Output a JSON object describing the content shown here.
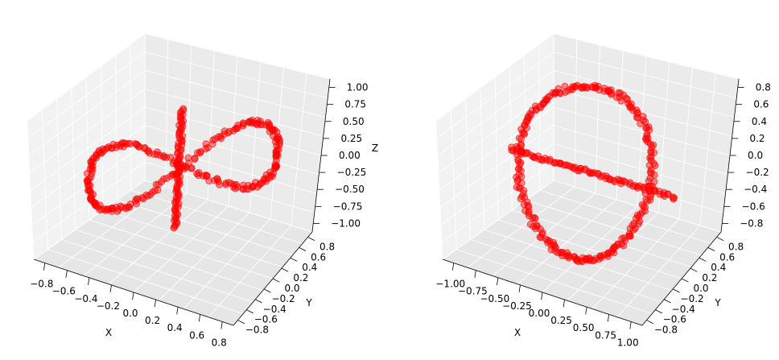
{
  "chart_data": [
    {
      "type": "scatter3d",
      "title": "",
      "xlabel": "X",
      "ylabel": "Y",
      "zlabel": "Z",
      "xlim": [
        -0.9,
        0.9
      ],
      "ylim": [
        -0.9,
        0.9
      ],
      "zlim": [
        -1.1,
        1.1
      ],
      "xticks": [
        "−0.8",
        "−0.6",
        "−0.4",
        "−0.2",
        "0.0",
        "0.2",
        "0.4",
        "0.6",
        "0.8"
      ],
      "yticks": [
        "−0.8",
        "−0.6",
        "−0.4",
        "−0.2",
        "0.0",
        "0.2",
        "0.4",
        "0.6",
        "0.8"
      ],
      "zticks": [
        "−1.00",
        "−0.75",
        "−0.50",
        "−0.25",
        "0.00",
        "0.25",
        "0.50",
        "0.75",
        "1.00"
      ],
      "xtick_values": [
        -0.8,
        -0.6,
        -0.4,
        -0.2,
        0.0,
        0.2,
        0.4,
        0.6,
        0.8
      ],
      "ytick_values": [
        -0.8,
        -0.6,
        -0.4,
        -0.2,
        0.0,
        0.2,
        0.4,
        0.6,
        0.8
      ],
      "ztick_values": [
        -1.0,
        -0.75,
        -0.5,
        -0.25,
        0.0,
        0.25,
        0.5,
        0.75,
        1.0
      ],
      "color": "#ff0000",
      "grid": true,
      "series": [
        {
          "shape": "figure-eight loop in xy plane",
          "t_samples": 72,
          "x_amp": 0.9,
          "y_amp": 0.6
        },
        {
          "shape": "vertical line along z",
          "z_range": [
            -1.0,
            1.0
          ]
        }
      ]
    },
    {
      "type": "scatter3d",
      "title": "",
      "xlabel": "X",
      "ylabel": "Y",
      "zlabel": "",
      "xlim": [
        -1.1,
        1.1
      ],
      "ylim": [
        -0.9,
        0.9
      ],
      "zlim": [
        -0.9,
        0.9
      ],
      "xticks": [
        "−1.00",
        "−0.75",
        "−0.50",
        "−0.25",
        "0.00",
        "0.25",
        "0.50",
        "0.75",
        "1.00"
      ],
      "yticks": [
        "−0.8",
        "−0.6",
        "−0.4",
        "−0.2",
        "0.0",
        "0.2",
        "0.4",
        "0.6",
        "0.8"
      ],
      "zticks": [
        "−0.8",
        "−0.6",
        "−0.4",
        "−0.2",
        "0.0",
        "0.2",
        "0.4",
        "0.6",
        "0.8"
      ],
      "xtick_values": [
        -1.0,
        -0.75,
        -0.5,
        -0.25,
        0.0,
        0.25,
        0.5,
        0.75,
        1.0
      ],
      "ytick_values": [
        -0.8,
        -0.6,
        -0.4,
        -0.2,
        0.0,
        0.2,
        0.4,
        0.6,
        0.8
      ],
      "ztick_values": [
        -0.8,
        -0.6,
        -0.4,
        -0.2,
        0.0,
        0.2,
        0.4,
        0.6,
        0.8
      ],
      "color": "#ff0000",
      "grid": true,
      "series": [
        {
          "shape": "vertical ring",
          "t_samples": 72,
          "radius": 0.9
        },
        {
          "shape": "diagonal line through ring"
        }
      ]
    }
  ]
}
